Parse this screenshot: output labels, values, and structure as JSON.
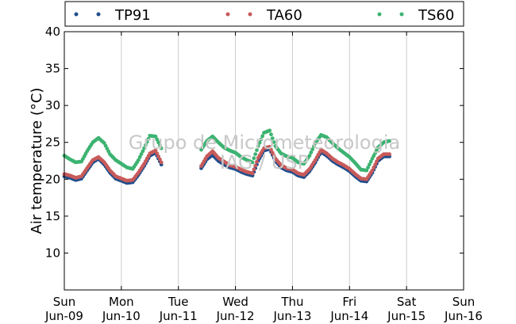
{
  "watermark": {
    "line1": "Grupo de Micrometeorologia",
    "line2": "IAG / USP"
  },
  "chart_data": {
    "type": "scatter",
    "title": "",
    "xlabel": "",
    "ylabel": "Air temperature (°C)",
    "ylim": [
      5,
      40
    ],
    "yticks": [
      10,
      15,
      20,
      25,
      30,
      35,
      40
    ],
    "xlim_days": [
      0,
      7
    ],
    "xticks": [
      {
        "day": 0,
        "l1": "Sun",
        "l2": "Jun-09"
      },
      {
        "day": 1,
        "l1": "Mon",
        "l2": "Jun-10"
      },
      {
        "day": 2,
        "l1": "Tue",
        "l2": "Jun-11"
      },
      {
        "day": 3,
        "l1": "Wed",
        "l2": "Jun-12"
      },
      {
        "day": 4,
        "l1": "Thu",
        "l2": "Jun-13"
      },
      {
        "day": 5,
        "l1": "Fri",
        "l2": "Jun-14"
      },
      {
        "day": 6,
        "l1": "Sat",
        "l2": "Jun-15"
      },
      {
        "day": 7,
        "l1": "Sun",
        "l2": "Jun-16"
      }
    ],
    "grid": "vertical",
    "legend_position": "top",
    "series": [
      {
        "name": "TP91",
        "color": "#1f4e8c",
        "segments": [
          [
            [
              0.0,
              20.4
            ],
            [
              0.1,
              20.2
            ],
            [
              0.2,
              19.9
            ],
            [
              0.3,
              20.1
            ],
            [
              0.4,
              21.2
            ],
            [
              0.5,
              22.3
            ],
            [
              0.6,
              22.8
            ],
            [
              0.7,
              22.0
            ],
            [
              0.8,
              20.9
            ],
            [
              0.9,
              20.1
            ],
            [
              1.0,
              19.8
            ],
            [
              1.1,
              19.5
            ],
            [
              1.2,
              19.6
            ],
            [
              1.3,
              20.6
            ],
            [
              1.4,
              21.8
            ],
            [
              1.5,
              23.2
            ],
            [
              1.6,
              23.6
            ],
            [
              1.7,
              22.0
            ]
          ],
          [
            [
              2.4,
              21.5
            ],
            [
              2.5,
              22.7
            ],
            [
              2.6,
              23.3
            ],
            [
              2.7,
              22.5
            ],
            [
              2.8,
              22.0
            ],
            [
              2.9,
              21.6
            ],
            [
              3.0,
              21.4
            ],
            [
              3.1,
              21.0
            ],
            [
              3.2,
              20.7
            ],
            [
              3.3,
              20.5
            ],
            [
              3.4,
              22.5
            ],
            [
              3.5,
              23.9
            ],
            [
              3.6,
              24.1
            ],
            [
              3.7,
              22.5
            ],
            [
              3.8,
              21.6
            ],
            [
              3.9,
              21.2
            ],
            [
              4.0,
              21.0
            ],
            [
              4.1,
              20.5
            ],
            [
              4.2,
              20.3
            ],
            [
              4.3,
              21.1
            ],
            [
              4.4,
              22.3
            ],
            [
              4.5,
              23.7
            ],
            [
              4.6,
              23.2
            ],
            [
              4.7,
              22.5
            ],
            [
              4.8,
              22.0
            ],
            [
              4.9,
              21.6
            ],
            [
              5.0,
              21.1
            ],
            [
              5.1,
              20.4
            ],
            [
              5.2,
              19.8
            ],
            [
              5.3,
              19.7
            ],
            [
              5.4,
              20.9
            ],
            [
              5.5,
              22.5
            ],
            [
              5.6,
              23.1
            ],
            [
              5.7,
              23.1
            ]
          ]
        ]
      },
      {
        "name": "TA60",
        "color": "#c85a5a",
        "segments": [
          [
            [
              0.0,
              20.7
            ],
            [
              0.1,
              20.5
            ],
            [
              0.2,
              20.2
            ],
            [
              0.3,
              20.4
            ],
            [
              0.4,
              21.5
            ],
            [
              0.5,
              22.6
            ],
            [
              0.6,
              23.0
            ],
            [
              0.7,
              22.3
            ],
            [
              0.8,
              21.2
            ],
            [
              0.9,
              20.4
            ],
            [
              1.0,
              20.1
            ],
            [
              1.1,
              19.8
            ],
            [
              1.2,
              19.9
            ],
            [
              1.3,
              20.9
            ],
            [
              1.4,
              22.1
            ],
            [
              1.5,
              23.5
            ],
            [
              1.6,
              23.9
            ],
            [
              1.7,
              22.3
            ]
          ],
          [
            [
              2.4,
              21.8
            ],
            [
              2.5,
              23.1
            ],
            [
              2.6,
              23.8
            ],
            [
              2.7,
              22.9
            ],
            [
              2.8,
              22.4
            ],
            [
              2.9,
              21.9
            ],
            [
              3.0,
              21.7
            ],
            [
              3.1,
              21.3
            ],
            [
              3.2,
              21.0
            ],
            [
              3.3,
              20.8
            ],
            [
              3.4,
              22.9
            ],
            [
              3.5,
              24.2
            ],
            [
              3.6,
              24.4
            ],
            [
              3.7,
              22.8
            ],
            [
              3.8,
              21.9
            ],
            [
              3.9,
              21.5
            ],
            [
              4.0,
              21.3
            ],
            [
              4.1,
              20.8
            ],
            [
              4.2,
              20.6
            ],
            [
              4.3,
              21.4
            ],
            [
              4.4,
              22.6
            ],
            [
              4.5,
              24.0
            ],
            [
              4.6,
              23.5
            ],
            [
              4.7,
              22.8
            ],
            [
              4.8,
              22.3
            ],
            [
              4.9,
              21.9
            ],
            [
              5.0,
              21.4
            ],
            [
              5.1,
              20.7
            ],
            [
              5.2,
              20.1
            ],
            [
              5.3,
              20.0
            ],
            [
              5.4,
              21.2
            ],
            [
              5.5,
              22.8
            ],
            [
              5.6,
              23.4
            ],
            [
              5.7,
              23.4
            ]
          ]
        ]
      },
      {
        "name": "TS60",
        "color": "#3cb371",
        "segments": [
          [
            [
              0.0,
              23.2
            ],
            [
              0.1,
              22.7
            ],
            [
              0.2,
              22.3
            ],
            [
              0.3,
              22.4
            ],
            [
              0.4,
              23.8
            ],
            [
              0.5,
              25.0
            ],
            [
              0.6,
              25.6
            ],
            [
              0.7,
              24.9
            ],
            [
              0.8,
              23.4
            ],
            [
              0.9,
              22.6
            ],
            [
              1.0,
              22.1
            ],
            [
              1.1,
              21.6
            ],
            [
              1.2,
              21.4
            ],
            [
              1.3,
              22.6
            ],
            [
              1.4,
              24.2
            ],
            [
              1.5,
              25.9
            ],
            [
              1.6,
              25.8
            ],
            [
              1.7,
              24.2
            ]
          ],
          [
            [
              2.4,
              24.0
            ],
            [
              2.5,
              25.2
            ],
            [
              2.6,
              25.8
            ],
            [
              2.7,
              25.0
            ],
            [
              2.8,
              24.3
            ],
            [
              2.9,
              23.9
            ],
            [
              3.0,
              23.6
            ],
            [
              3.1,
              23.0
            ],
            [
              3.2,
              22.6
            ],
            [
              3.3,
              22.3
            ],
            [
              3.4,
              24.5
            ],
            [
              3.5,
              26.3
            ],
            [
              3.6,
              26.6
            ],
            [
              3.7,
              24.5
            ],
            [
              3.8,
              23.5
            ],
            [
              3.9,
              23.1
            ],
            [
              4.0,
              22.9
            ],
            [
              4.1,
              22.3
            ],
            [
              4.2,
              22.1
            ],
            [
              4.3,
              23.2
            ],
            [
              4.4,
              24.9
            ],
            [
              4.5,
              26.0
            ],
            [
              4.6,
              25.7
            ],
            [
              4.7,
              24.9
            ],
            [
              4.8,
              24.2
            ],
            [
              4.9,
              23.6
            ],
            [
              5.0,
              23.0
            ],
            [
              5.1,
              22.2
            ],
            [
              5.2,
              21.3
            ],
            [
              5.3,
              21.2
            ],
            [
              5.4,
              22.8
            ],
            [
              5.5,
              24.3
            ],
            [
              5.6,
              25.0
            ],
            [
              5.7,
              25.2
            ]
          ]
        ]
      }
    ]
  }
}
